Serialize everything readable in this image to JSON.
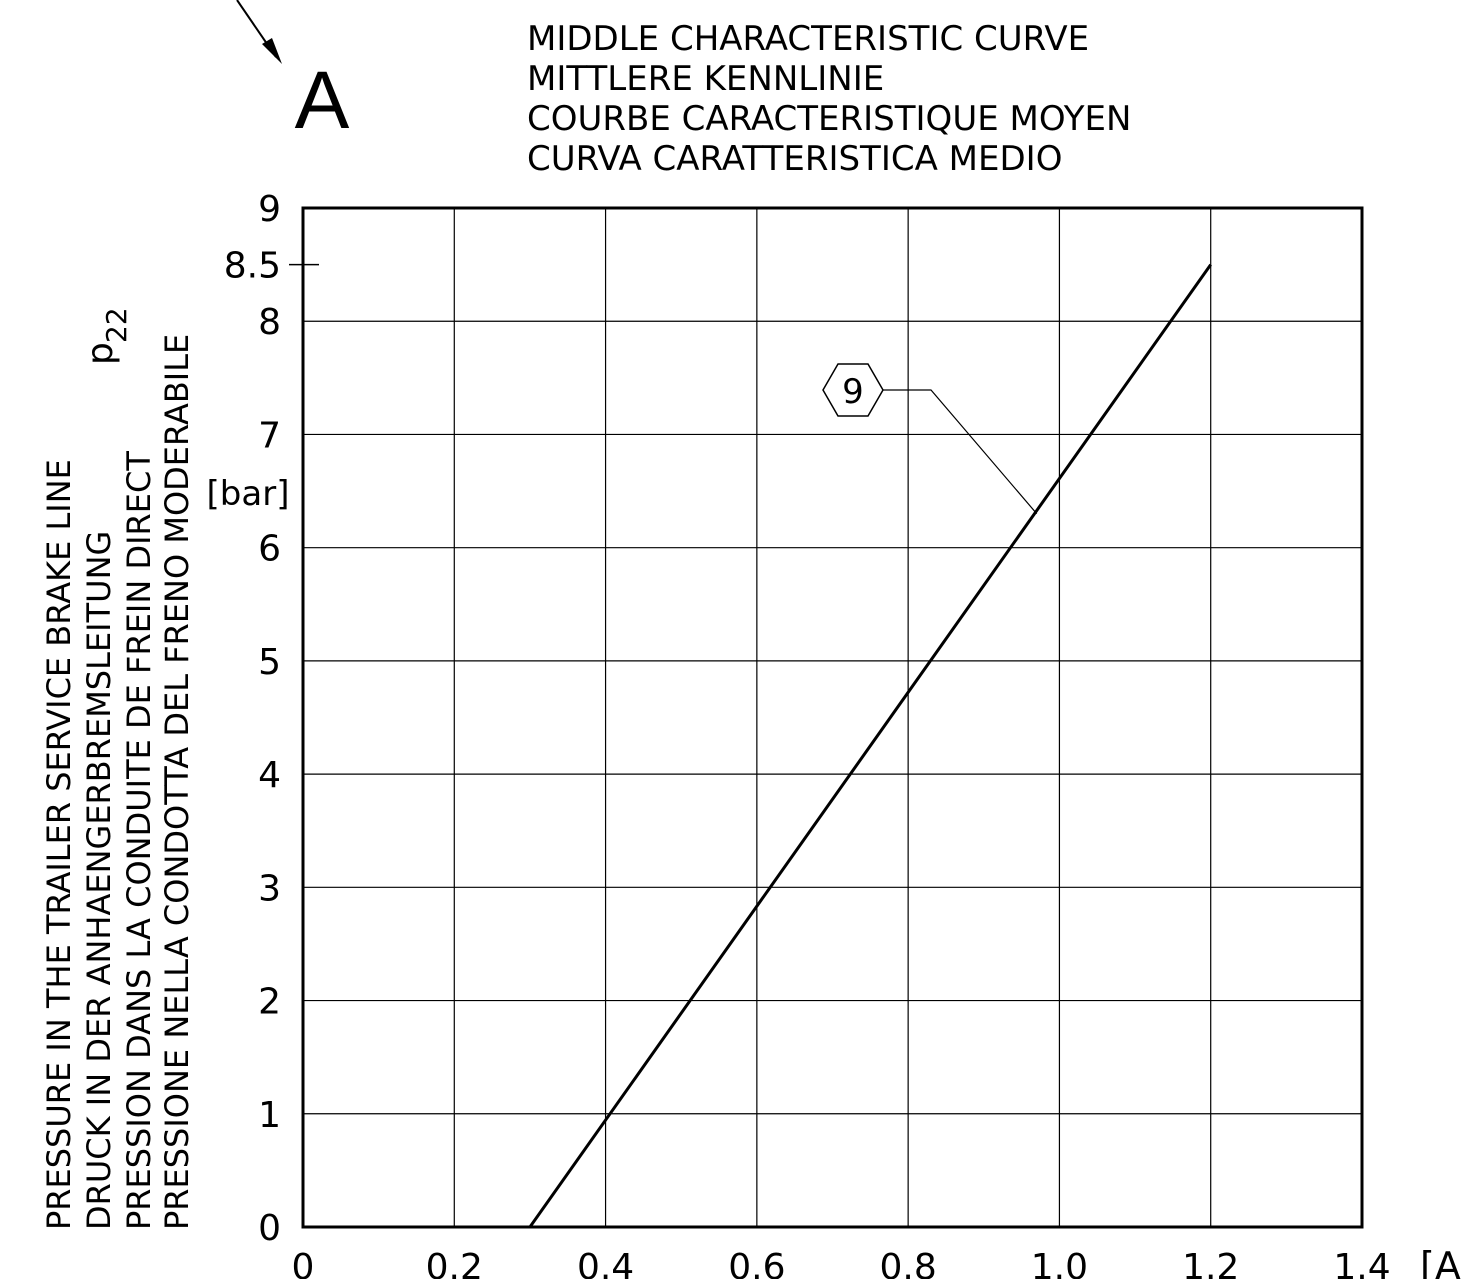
{
  "corner_label": "A",
  "title_lines": [
    "MIDDLE CHARACTERISTIC CURVE",
    "MITTLERE KENNLINIE",
    "COURBE CARACTERISTIQUE MOYEN",
    "CURVA CARATTERISTICA MEDIO"
  ],
  "ylabel_lines": [
    "PRESSURE IN THE TRAILER SERVICE BRAKE LINE",
    "DRUCK IN DER ANHAENGERBREMSLEITUNG",
    "PRESSION DANS LA CONDUITE DE FREIN DIRECT",
    "PRESSIONE NELLA CONDOTTA DEL FRENO MODERABILE"
  ],
  "ysymbol": "p",
  "ysymbol_sub": "22",
  "yunit": "[bar]",
  "xunit": "[A]",
  "chart_data": {
    "type": "line",
    "title": "MIDDLE CHARACTERISTIC CURVE",
    "xlabel": "[A]",
    "ylabel": "PRESSURE IN THE TRAILER SERVICE BRAKE LINE",
    "xlim": [
      0,
      1.4
    ],
    "ylim": [
      0,
      9
    ],
    "grid": true,
    "x_ticks": [
      0,
      0.2,
      0.4,
      0.6,
      0.8,
      1.0,
      1.2,
      1.4
    ],
    "x_tick_labels": [
      "0",
      "0.2",
      "0.4",
      "0.6",
      "0.8",
      "1.0",
      "1.2",
      "1.4"
    ],
    "y_ticks": [
      0,
      1,
      2,
      3,
      4,
      5,
      6,
      7,
      8,
      9
    ],
    "y_tick_labels": [
      "0",
      "1",
      "2",
      "3",
      "4",
      "5",
      "6",
      "7",
      "8",
      "9"
    ],
    "y_extra_tick": 8.5,
    "y_extra_tick_label": "8.5",
    "series": [
      {
        "name": "9",
        "x": [
          0.3,
          1.2
        ],
        "y": [
          0,
          8.5
        ]
      }
    ],
    "callout": {
      "label": "9",
      "points_to": [
        0.97,
        6.3
      ]
    }
  }
}
